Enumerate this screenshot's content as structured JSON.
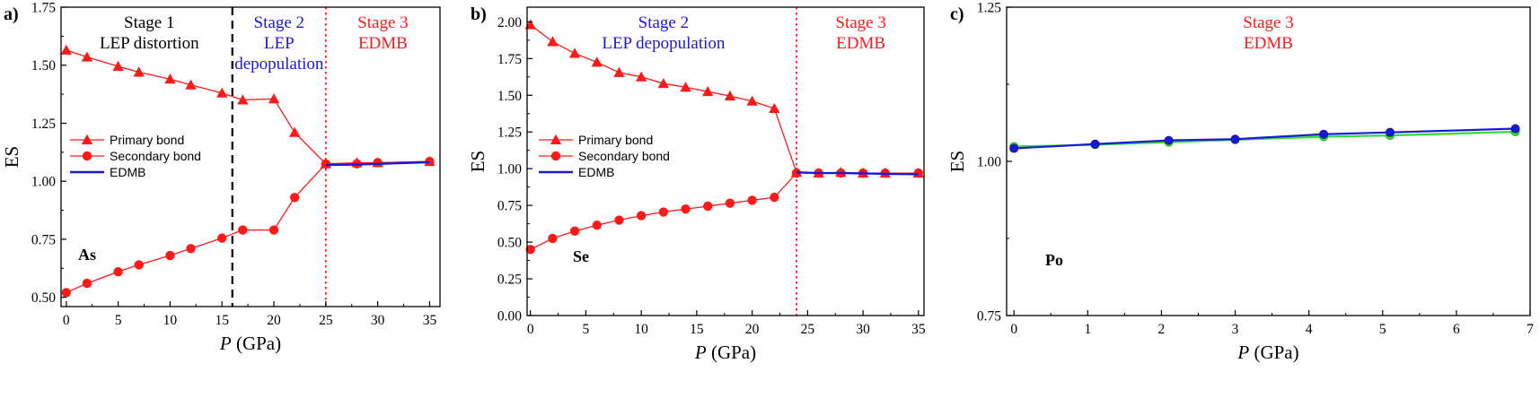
{
  "colors": {
    "primary": "#ff1a1a",
    "secondary": "#ff1a1a",
    "edmb": "#1a1ad6",
    "stage_black": "#000000",
    "stage_blue": "#1a1ad6",
    "stage_red": "#ff1a1a",
    "po_green": "#33dd33",
    "po_blue": "#1a1ad6"
  },
  "chart_data": [
    {
      "panel_label": "a)",
      "element": "As",
      "type": "line",
      "xlabel_italic": "P",
      "xlabel_rest": " (GPa)",
      "ylabel": "ES",
      "xlim": [
        -0.5,
        36
      ],
      "ylim": [
        0.46,
        1.75
      ],
      "xticks": [
        0,
        5,
        10,
        15,
        20,
        25,
        30,
        35
      ],
      "yticks": [
        0.5,
        0.75,
        1.0,
        1.25,
        1.5,
        1.75
      ],
      "ytick_labels": [
        "0.50",
        "0.75",
        "1.00",
        "1.25",
        "1.50",
        "1.75"
      ],
      "boundaries": [
        {
          "x": 16,
          "style": "dashed",
          "color": "black"
        },
        {
          "x": 25,
          "style": "dotted",
          "color": "red"
        }
      ],
      "stages": [
        {
          "x": 8,
          "line1": "Stage 1",
          "line2": "LEP distortion",
          "line3": "",
          "color": "black"
        },
        {
          "x": 20.5,
          "line1": "Stage 2",
          "line2": "LEP",
          "line3": "depopulation",
          "color": "blue"
        },
        {
          "x": 30.5,
          "line1": "Stage 3",
          "line2": "EDMB",
          "line3": "",
          "color": "red"
        }
      ],
      "legend": [
        "Primary bond",
        "Secondary bond",
        "EDMB"
      ],
      "series": [
        {
          "name": "Primary bond",
          "marker": "triangle",
          "x": [
            0,
            2,
            5,
            7,
            10,
            12,
            15,
            17,
            20,
            22,
            25,
            28,
            30,
            35
          ],
          "y": [
            1.565,
            1.535,
            1.495,
            1.47,
            1.44,
            1.415,
            1.38,
            1.35,
            1.355,
            1.21,
            1.075,
            1.08,
            1.08,
            1.085
          ]
        },
        {
          "name": "Secondary bond",
          "marker": "circle",
          "x": [
            0,
            2,
            5,
            7,
            10,
            12,
            15,
            17,
            20,
            22,
            25,
            28,
            30,
            35
          ],
          "y": [
            0.52,
            0.56,
            0.61,
            0.64,
            0.68,
            0.71,
            0.755,
            0.79,
            0.79,
            0.93,
            1.075,
            1.075,
            1.08,
            1.085
          ]
        },
        {
          "name": "EDMB",
          "marker": "none",
          "x": [
            25,
            28,
            30,
            35
          ],
          "y": [
            1.07,
            1.072,
            1.075,
            1.082
          ]
        }
      ]
    },
    {
      "panel_label": "b)",
      "element": "Se",
      "type": "line",
      "xlabel_italic": "P",
      "xlabel_rest": " (GPa)",
      "ylabel": "ES",
      "xlim": [
        -0.3,
        35.5
      ],
      "ylim": [
        0.0,
        2.1
      ],
      "xticks": [
        0,
        5,
        10,
        15,
        20,
        25,
        30,
        35
      ],
      "yticks": [
        0.0,
        0.25,
        0.5,
        0.75,
        1.0,
        1.25,
        1.5,
        1.75,
        2.0
      ],
      "ytick_labels": [
        "0.00",
        "0.25",
        "0.50",
        "0.75",
        "1.00",
        "1.25",
        "1.50",
        "1.75",
        "2.00"
      ],
      "boundaries": [
        {
          "x": 24,
          "style": "dotted",
          "color": "red"
        }
      ],
      "stages": [
        {
          "x": 12,
          "line1": "Stage 2",
          "line2": "LEP depopulation",
          "line3": "",
          "color": "blue"
        },
        {
          "x": 29.8,
          "line1": "Stage 3",
          "line2": "EDMB",
          "line3": "",
          "color": "red"
        }
      ],
      "legend": [
        "Primary bond",
        "Secondary bond",
        "EDMB"
      ],
      "series": [
        {
          "name": "Primary bond",
          "marker": "triangle",
          "x": [
            0,
            2,
            4,
            6,
            8,
            10,
            12,
            14,
            16,
            18,
            20,
            22,
            24,
            26,
            28,
            30,
            32,
            35
          ],
          "y": [
            1.98,
            1.865,
            1.785,
            1.725,
            1.655,
            1.625,
            1.58,
            1.555,
            1.525,
            1.495,
            1.46,
            1.41,
            0.975,
            0.97,
            0.975,
            0.97,
            0.97,
            0.97
          ]
        },
        {
          "name": "Secondary bond",
          "marker": "circle",
          "x": [
            0,
            2,
            4,
            6,
            8,
            10,
            12,
            14,
            16,
            18,
            20,
            22,
            24,
            26,
            28,
            30,
            32,
            35
          ],
          "y": [
            0.45,
            0.525,
            0.575,
            0.615,
            0.65,
            0.68,
            0.705,
            0.725,
            0.745,
            0.765,
            0.785,
            0.805,
            0.97,
            0.97,
            0.97,
            0.97,
            0.97,
            0.97
          ]
        },
        {
          "name": "EDMB",
          "marker": "none",
          "x": [
            24,
            26,
            28,
            30,
            32,
            35
          ],
          "y": [
            0.975,
            0.97,
            0.97,
            0.968,
            0.965,
            0.962
          ]
        }
      ]
    },
    {
      "panel_label": "c)",
      "element": "Po",
      "type": "line",
      "xlabel_italic": "P",
      "xlabel_rest": " (GPa)",
      "ylabel": "ES",
      "xlim": [
        -0.1,
        7
      ],
      "ylim": [
        0.75,
        1.25
      ],
      "xticks": [
        0,
        1,
        2,
        3,
        4,
        5,
        6,
        7
      ],
      "yticks": [
        0.75,
        1.0,
        1.25
      ],
      "ytick_labels": [
        "0.75",
        "1.00",
        "1.25"
      ],
      "boundaries": [],
      "stages": [
        {
          "x": 3.45,
          "line1": "Stage 3",
          "line2": "EDMB",
          "line3": "",
          "color": "red"
        }
      ],
      "legend": [],
      "series": [
        {
          "name": "Green",
          "marker": "circle",
          "x": [
            0,
            1.1,
            2.1,
            3,
            4.2,
            5.1,
            6.8
          ],
          "y": [
            1.024,
            1.027,
            1.031,
            1.035,
            1.04,
            1.042,
            1.048
          ]
        },
        {
          "name": "Blue",
          "marker": "circle",
          "x": [
            0,
            1.1,
            2.1,
            3,
            4.2,
            5.1,
            6.8
          ],
          "y": [
            1.021,
            1.028,
            1.034,
            1.036,
            1.044,
            1.047,
            1.053
          ]
        }
      ]
    }
  ]
}
